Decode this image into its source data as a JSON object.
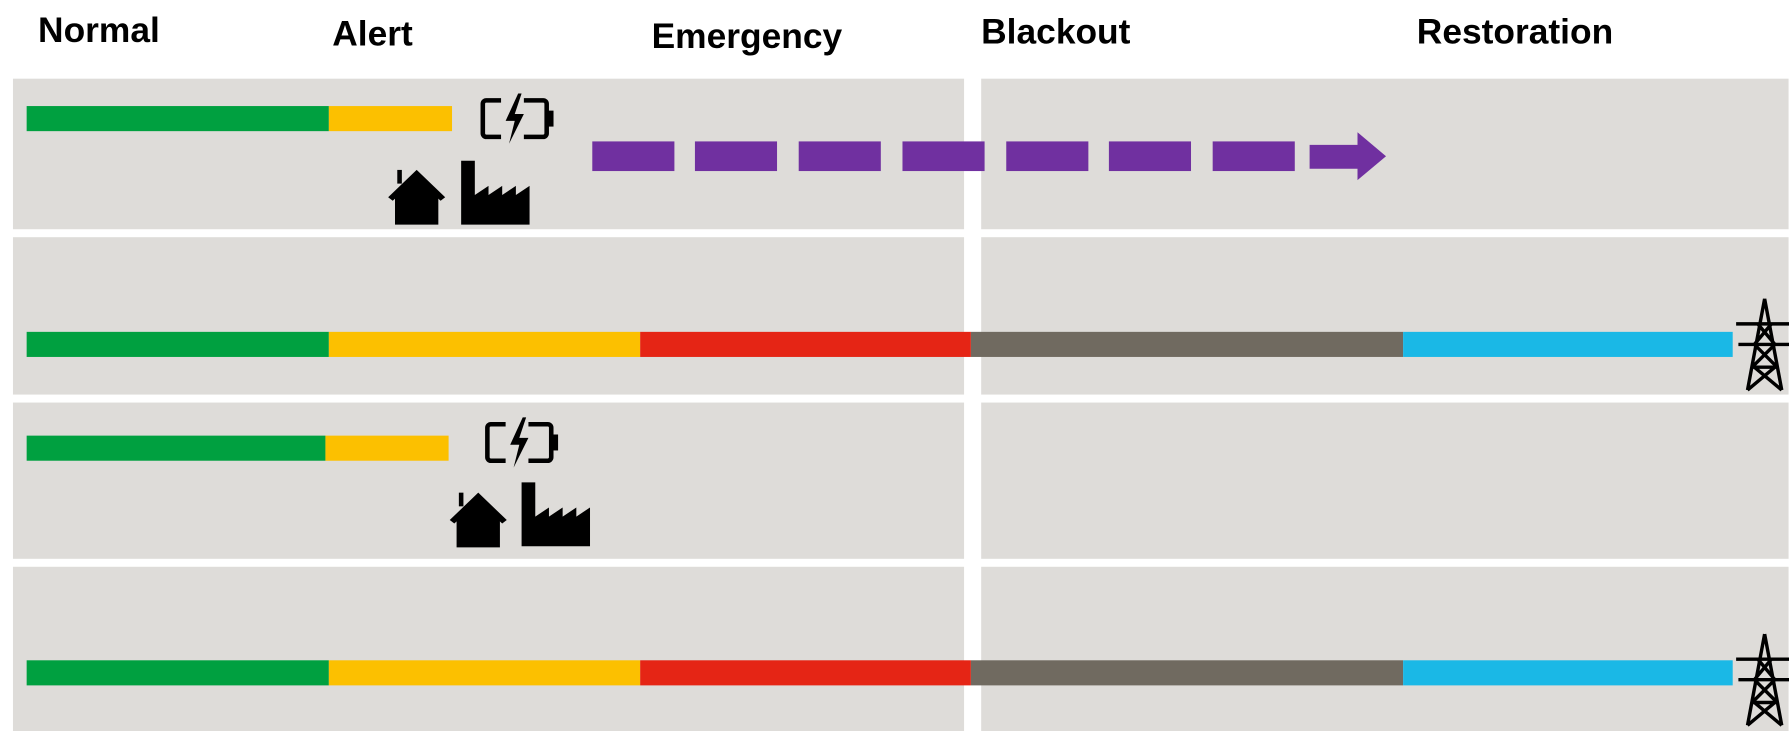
{
  "headers": [
    "Normal",
    "Alert",
    "Emergency",
    "Blackout",
    "Restoration"
  ]
}
